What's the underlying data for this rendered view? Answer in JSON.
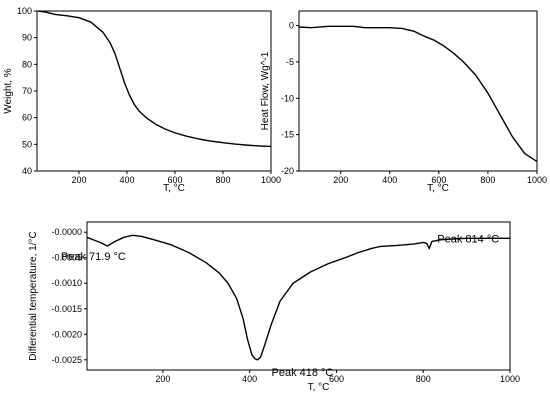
{
  "chart_data": [
    {
      "type": "line",
      "id": "weight",
      "xlabel": "T, °C",
      "ylabel": "Weight, %",
      "xlim": [
        25,
        1000
      ],
      "ylim": [
        40,
        100
      ],
      "xticks": [
        200,
        400,
        600,
        800,
        1000
      ],
      "xtick_labels": [
        "200",
        "400",
        "600",
        "800",
        "1000"
      ],
      "yticks": [
        40,
        50,
        60,
        70,
        80,
        90,
        100
      ],
      "ytick_labels": [
        "40",
        "50",
        "60",
        "70",
        "80",
        "90",
        "100"
      ],
      "series": [
        {
          "x": [
            30,
            60,
            100,
            150,
            200,
            250,
            300,
            330,
            350,
            370,
            390,
            410,
            430,
            450,
            480,
            520,
            560,
            600,
            650,
            700,
            750,
            800,
            850,
            900,
            950,
            1000
          ],
          "y": [
            100,
            99.6,
            98.7,
            98.2,
            97.5,
            95.8,
            92,
            88,
            84,
            78.5,
            73,
            68.5,
            65,
            62.5,
            60,
            57.5,
            55.7,
            54.3,
            53,
            52,
            51.2,
            50.6,
            50.1,
            49.7,
            49.4,
            49.2
          ]
        }
      ]
    },
    {
      "type": "line",
      "id": "heatflow",
      "xlabel": "T, °C",
      "ylabel": "Heat Flow, Wg^-1",
      "xlim": [
        30,
        1000
      ],
      "ylim": [
        -20,
        2
      ],
      "xticks": [
        200,
        400,
        600,
        800,
        1000
      ],
      "xtick_labels": [
        "200",
        "400",
        "600",
        "800",
        "1000"
      ],
      "yticks": [
        0,
        -5,
        -10,
        -15,
        -20
      ],
      "ytick_labels": [
        "0",
        "-5",
        "-10",
        "-15",
        "-20"
      ],
      "series": [
        {
          "x": [
            30,
            80,
            150,
            250,
            300,
            350,
            400,
            450,
            500,
            530,
            550,
            580,
            620,
            660,
            700,
            750,
            800,
            850,
            900,
            950,
            1000
          ],
          "y": [
            -0.2,
            -0.3,
            -0.1,
            -0.1,
            -0.3,
            -0.3,
            -0.3,
            -0.4,
            -0.8,
            -1.3,
            -1.6,
            -2.0,
            -2.8,
            -3.8,
            -5.0,
            -6.8,
            -9.3,
            -12.3,
            -15.3,
            -17.6,
            -18.7
          ]
        }
      ]
    },
    {
      "type": "line",
      "id": "dtg",
      "xlabel": "T, °C",
      "ylabel": "Differential temperature, 1/°C",
      "xlim": [
        25,
        1000
      ],
      "ylim": [
        -0.0027,
        0.0002
      ],
      "xticks": [
        200,
        400,
        600,
        800,
        1000
      ],
      "xtick_labels": [
        "200",
        "400",
        "600",
        "800",
        "1000"
      ],
      "yticks": [
        0,
        -0.0005,
        -0.001,
        -0.0015,
        -0.002,
        -0.0025
      ],
      "ytick_labels": [
        "-0.0000",
        "-0.0005",
        "-0.0010",
        "-0.0015",
        "-0.0020",
        "-0.0025"
      ],
      "series": [
        {
          "x": [
            25,
            40,
            55,
            72,
            90,
            110,
            130,
            150,
            180,
            220,
            260,
            300,
            330,
            350,
            370,
            385,
            395,
            405,
            412,
            418,
            425,
            435,
            450,
            470,
            500,
            540,
            580,
            620,
            650,
            680,
            700,
            740,
            780,
            800,
            808,
            814,
            820,
            840,
            870,
            900,
            950,
            1000
          ],
          "y": [
            -0.0001,
            -0.00015,
            -0.0002,
            -0.00027,
            -0.00018,
            -0.0001,
            -6e-05,
            -8e-05,
            -0.00015,
            -0.00025,
            -0.0004,
            -0.0006,
            -0.0008,
            -0.001,
            -0.0013,
            -0.0017,
            -0.0021,
            -0.0024,
            -0.00248,
            -0.0025,
            -0.00245,
            -0.0022,
            -0.0018,
            -0.00135,
            -0.001,
            -0.00078,
            -0.00062,
            -0.0005,
            -0.0004,
            -0.00032,
            -0.00028,
            -0.00026,
            -0.00023,
            -0.0002,
            -0.00022,
            -0.00032,
            -0.00018,
            -0.00015,
            -0.00013,
            -0.00012,
            -0.00012,
            -0.00012
          ]
        }
      ],
      "annotations": [
        {
          "text": "Peak 71.9 °C",
          "x": 72,
          "y": -0.00027
        },
        {
          "text": "Peak 418 °C",
          "x": 418,
          "y": -0.0025
        },
        {
          "text": "Peak 814 °C",
          "x": 814,
          "y": -0.00032
        }
      ]
    }
  ]
}
